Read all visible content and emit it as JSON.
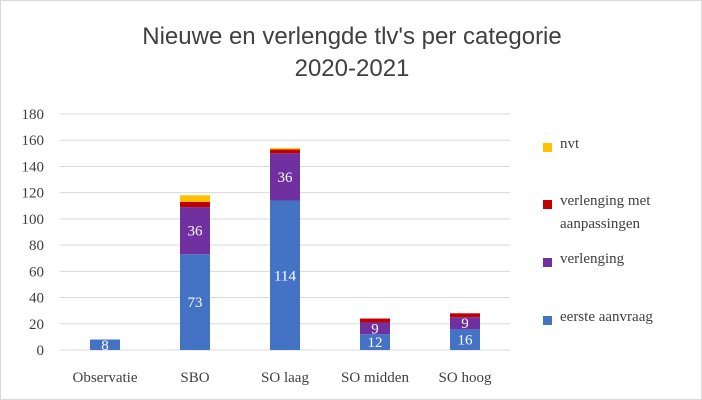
{
  "chart_data": {
    "type": "bar",
    "stacked": true,
    "title": "Nieuwe en verlengde tlv's per categorie",
    "subtitle": "2020-2021",
    "xlabel": "",
    "ylabel": "",
    "ylim": [
      0,
      180
    ],
    "yticks": [
      0,
      20,
      40,
      60,
      80,
      100,
      120,
      140,
      160,
      180
    ],
    "grid": true,
    "legend_position": "right",
    "categories": [
      "Observatie",
      "SBO",
      "SO laag",
      "SO midden",
      "SO hoog"
    ],
    "series": [
      {
        "name": "eerste aanvraag",
        "color": "#4472c4",
        "values": [
          8,
          73,
          114,
          12,
          16
        ],
        "labels": [
          "8",
          "73",
          "114",
          "12",
          "16"
        ]
      },
      {
        "name": "verlenging",
        "color": "#7030a0",
        "values": [
          0,
          36,
          36,
          9,
          9
        ],
        "labels": [
          "",
          "36",
          "36",
          "9",
          "9"
        ]
      },
      {
        "name": "verlenging met aanpassingen",
        "color": "#c00000",
        "values": [
          0,
          4,
          3,
          3,
          3
        ],
        "labels": [
          "",
          "",
          "",
          "",
          ""
        ]
      },
      {
        "name": "nvt",
        "color": "#ffc000",
        "values": [
          0,
          5,
          1,
          0,
          0
        ],
        "labels": [
          "",
          "",
          "",
          "",
          ""
        ]
      }
    ],
    "legend_order": [
      "nvt",
      "verlenging met aanpassingen",
      "verlenging",
      "eerste aanvraag"
    ]
  }
}
